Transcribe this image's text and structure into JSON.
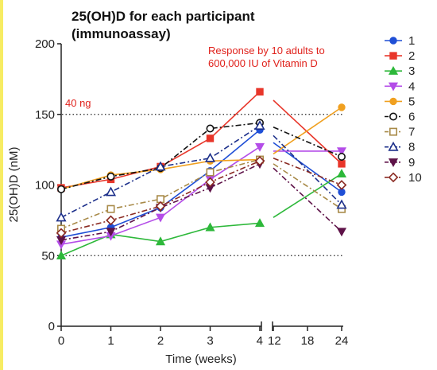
{
  "chart_data": {
    "type": "line",
    "title": "25(OH)D for each participant",
    "subtitle": "(immunoassay)",
    "annotation": "Response by 10 adults to 600,000 IU of Vitamin D",
    "annotation_lines": [
      "Response by 10 adults to",
      "600,000 IU of Vitamin D"
    ],
    "ref_label": "40 ng",
    "ref_lines": [
      50,
      150
    ],
    "xlabel": "Time (weeks)",
    "ylabel": "25(OH)D (nM)",
    "ylim": [
      0,
      200
    ],
    "yticks": [
      "0",
      "50",
      "100",
      "150",
      "200"
    ],
    "x_segments": [
      {
        "ticks": [
          "0",
          "1",
          "2",
          "3",
          "4"
        ],
        "range": [
          0,
          4
        ]
      },
      {
        "ticks": [
          "12",
          "18",
          "24"
        ],
        "range": [
          12,
          24
        ]
      }
    ],
    "legend_position": "right",
    "series": [
      {
        "name": "1",
        "color": "#1f4fd6",
        "marker": "circle",
        "dash": "solid",
        "points": [
          [
            0,
            63
          ],
          [
            1,
            70
          ],
          [
            2,
            84
          ],
          [
            3,
            110
          ],
          [
            4,
            139
          ],
          [
            12,
            130
          ],
          [
            24,
            95
          ]
        ]
      },
      {
        "name": "2",
        "color": "#e8362a",
        "marker": "square",
        "dash": "solid",
        "points": [
          [
            0,
            98
          ],
          [
            1,
            104
          ],
          [
            2,
            113
          ],
          [
            3,
            133
          ],
          [
            4,
            166
          ],
          [
            12,
            160
          ],
          [
            24,
            115
          ]
        ]
      },
      {
        "name": "3",
        "color": "#2db83a",
        "marker": "triangle-up",
        "dash": "solid",
        "points": [
          [
            0,
            50
          ],
          [
            1,
            65
          ],
          [
            2,
            60
          ],
          [
            3,
            70
          ],
          [
            4,
            73
          ],
          [
            12,
            77
          ],
          [
            24,
            108
          ]
        ]
      },
      {
        "name": "4",
        "color": "#b44de8",
        "marker": "triangle-down",
        "dash": "solid",
        "points": [
          [
            0,
            58
          ],
          [
            1,
            64
          ],
          [
            2,
            77
          ],
          [
            3,
            104
          ],
          [
            4,
            127
          ],
          [
            12,
            124
          ],
          [
            24,
            124
          ]
        ]
      },
      {
        "name": "5",
        "color": "#f0a020",
        "marker": "circle",
        "dash": "solid",
        "points": [
          [
            0,
            97
          ],
          [
            1,
            107
          ],
          [
            2,
            111
          ],
          [
            3,
            117
          ],
          [
            4,
            118
          ],
          [
            12,
            122
          ],
          [
            24,
            155
          ]
        ]
      },
      {
        "name": "6",
        "color": "#111111",
        "marker": "circle-open",
        "dash": "dashdot",
        "points": [
          [
            0,
            97
          ],
          [
            1,
            106
          ],
          [
            2,
            112
          ],
          [
            3,
            140
          ],
          [
            4,
            144
          ],
          [
            12,
            141
          ],
          [
            24,
            120
          ]
        ]
      },
      {
        "name": "7",
        "color": "#a88a48",
        "marker": "square-open",
        "dash": "dashdot",
        "points": [
          [
            0,
            69
          ],
          [
            1,
            83
          ],
          [
            2,
            90
          ],
          [
            3,
            109
          ],
          [
            4,
            118
          ],
          [
            12,
            115
          ],
          [
            24,
            83
          ]
        ]
      },
      {
        "name": "8",
        "color": "#1c2f8a",
        "marker": "triangle-open",
        "dash": "dashdot",
        "points": [
          [
            0,
            77
          ],
          [
            1,
            95
          ],
          [
            2,
            113
          ],
          [
            3,
            119
          ],
          [
            4,
            142
          ],
          [
            12,
            135
          ],
          [
            24,
            86
          ]
        ]
      },
      {
        "name": "9",
        "color": "#5e1248",
        "marker": "triangle-down",
        "dash": "dashdot",
        "points": [
          [
            0,
            61
          ],
          [
            1,
            67
          ],
          [
            2,
            84
          ],
          [
            3,
            98
          ],
          [
            4,
            115
          ],
          [
            12,
            112
          ],
          [
            24,
            67
          ]
        ]
      },
      {
        "name": "10",
        "color": "#8a2a22",
        "marker": "diamond-open",
        "dash": "dashdot",
        "points": [
          [
            0,
            66
          ],
          [
            1,
            75
          ],
          [
            2,
            85
          ],
          [
            3,
            102
          ],
          [
            4,
            117
          ],
          [
            12,
            119
          ],
          [
            24,
            100
          ]
        ]
      }
    ]
  }
}
